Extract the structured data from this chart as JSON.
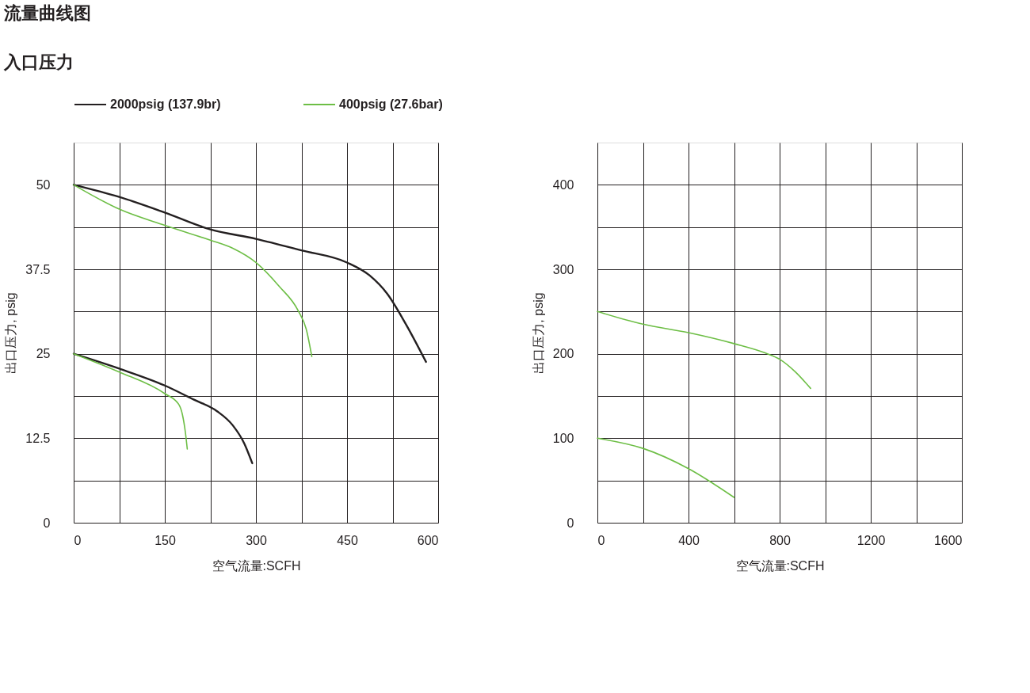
{
  "chart_data": [
    {
      "type": "line",
      "title": "流量曲线图",
      "subtitle": "入口压力",
      "xlabel": "空气流量:SCFH",
      "ylabel": "出口压力, psig",
      "xlim": [
        0,
        600
      ],
      "ylim": [
        0,
        56.25
      ],
      "xticks": [
        0,
        {
          "value": 75,
          "label": null
        },
        150,
        {
          "value": 225,
          "label": null
        },
        300,
        {
          "value": 375,
          "label": null
        },
        450,
        {
          "value": 525,
          "label": null
        },
        600
      ],
      "yticks": [
        0,
        {
          "value": 6.25,
          "label": null
        },
        12.5,
        {
          "value": 18.75,
          "label": null
        },
        25,
        {
          "value": 31.25,
          "label": null
        },
        37.5,
        {
          "value": 43.75,
          "label": null
        },
        50
      ],
      "grid": true,
      "legend": "top",
      "marker": "none",
      "line_style": "solid",
      "series": [
        {
          "name": "2000psig (137.9br)",
          "color": "#231f20",
          "x": [
            0,
            75,
            150,
            225,
            300,
            375,
            450,
            487,
            516,
            548,
            580
          ],
          "values": [
            50,
            48.2,
            45.9,
            43.4,
            42.0,
            40.3,
            38.5,
            36.6,
            33.9,
            29.2,
            23.8
          ]
        },
        {
          "name": "400psig (27.6bar)",
          "color": "#6dbe45",
          "x": [
            0,
            75,
            150,
            225,
            262,
            300,
            338,
            370,
            383,
            392
          ],
          "values": [
            50,
            46.4,
            44.0,
            41.8,
            40.6,
            38.5,
            35.0,
            31.3,
            28.6,
            24.6
          ]
        },
        {
          "color": "#231f20",
          "x": [
            0,
            75,
            150,
            198,
            236,
            262,
            281,
            294
          ],
          "values": [
            25,
            22.8,
            20.3,
            18.2,
            16.5,
            14.4,
            11.7,
            8.8
          ]
        },
        {
          "color": "#6dbe45",
          "x": [
            0,
            75,
            150,
            173,
            179,
            184,
            187
          ],
          "values": [
            25,
            22.3,
            19.1,
            17.5,
            16.0,
            13.3,
            10.9
          ]
        }
      ]
    },
    {
      "type": "line",
      "xlabel": "空气流量:SCFH",
      "ylabel": "出口压力, psig",
      "xlim": [
        0,
        1600
      ],
      "ylim": [
        0,
        450
      ],
      "xticks": [
        0,
        {
          "value": 200,
          "label": null
        },
        400,
        {
          "value": 600,
          "label": null
        },
        800,
        {
          "value": 1000,
          "label": null
        },
        1200,
        {
          "value": 1400,
          "label": null
        },
        1600
      ],
      "yticks": [
        0,
        {
          "value": 50,
          "label": null
        },
        100,
        {
          "value": 150,
          "label": null
        },
        200,
        {
          "value": 250,
          "label": null
        },
        300,
        {
          "value": 350,
          "label": null
        },
        400
      ],
      "grid": true,
      "marker": "none",
      "line_style": "solid",
      "series": [
        {
          "color": "#6dbe45",
          "x": [
            0,
            200,
            400,
            600,
            736,
            803,
            871,
            936
          ],
          "values": [
            250,
            235,
            225,
            212,
            201,
            193,
            178,
            159
          ]
        },
        {
          "color": "#6dbe45",
          "x": [
            0,
            200,
            400,
            600
          ],
          "values": [
            100,
            88,
            64,
            30
          ]
        }
      ]
    }
  ]
}
